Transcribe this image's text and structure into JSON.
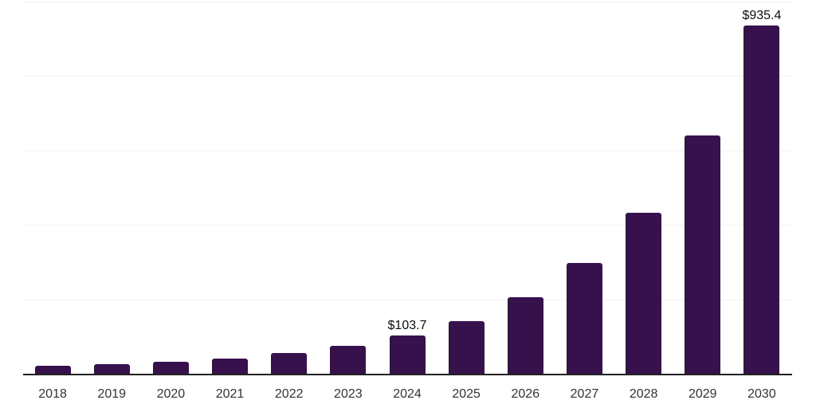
{
  "chart_data": {
    "type": "bar",
    "title": "",
    "xlabel": "",
    "ylabel": "",
    "categories": [
      "2018",
      "2019",
      "2020",
      "2021",
      "2022",
      "2023",
      "2024",
      "2025",
      "2026",
      "2027",
      "2028",
      "2029",
      "2030"
    ],
    "values": [
      24,
      27,
      34,
      43,
      57,
      76,
      103.7,
      144,
      208,
      299,
      433,
      640,
      935.4
    ],
    "point_labels": [
      "",
      "",
      "",
      "",
      "",
      "",
      "$103.7",
      "",
      "",
      "",
      "",
      "",
      "$935.4"
    ],
    "ylim": [
      0,
      1000
    ],
    "gridline_interval": 200,
    "grid": "horizontal",
    "y_tick_labels_visible": false,
    "legend_position": "none",
    "colors": {
      "bar": "#36114C",
      "axis_line": "#222222",
      "gridline": "#f2f2f2",
      "tick_label": "#333333",
      "data_label": "#0d0d0d",
      "background": "#ffffff"
    }
  }
}
